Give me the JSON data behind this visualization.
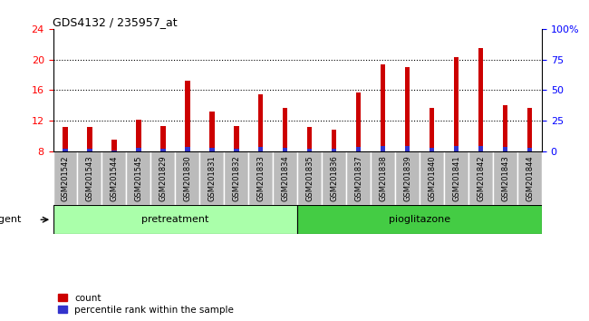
{
  "title": "GDS4132 / 235957_at",
  "samples": [
    "GSM201542",
    "GSM201543",
    "GSM201544",
    "GSM201545",
    "GSM201829",
    "GSM201830",
    "GSM201831",
    "GSM201832",
    "GSM201833",
    "GSM201834",
    "GSM201835",
    "GSM201836",
    "GSM201837",
    "GSM201838",
    "GSM201839",
    "GSM201840",
    "GSM201841",
    "GSM201842",
    "GSM201843",
    "GSM201844"
  ],
  "count_values": [
    11.2,
    11.2,
    9.5,
    12.1,
    11.3,
    17.2,
    13.2,
    11.3,
    15.4,
    13.7,
    11.2,
    10.8,
    15.7,
    19.3,
    19.0,
    13.7,
    20.3,
    21.5,
    14.0,
    13.7
  ],
  "percentile_raw": [
    8.3,
    8.3,
    8.1,
    8.4,
    8.3,
    8.6,
    8.5,
    8.3,
    8.6,
    8.5,
    8.3,
    8.3,
    8.6,
    8.7,
    8.7,
    8.5,
    8.7,
    8.7,
    8.6,
    8.5
  ],
  "group1_label": "pretreatment",
  "group2_label": "pioglitazone",
  "group1_count": 10,
  "group2_count": 10,
  "ylim_left": [
    8,
    24
  ],
  "ylim_right": [
    0,
    100
  ],
  "yticks_left": [
    8,
    12,
    16,
    20,
    24
  ],
  "yticks_right": [
    0,
    25,
    50,
    75,
    100
  ],
  "ytick_labels_right": [
    "0",
    "25",
    "50",
    "75",
    "100%"
  ],
  "bar_color_red": "#cc0000",
  "bar_color_blue": "#3333cc",
  "group_bg1": "#aaffaa",
  "group_bg2": "#44cc44",
  "xtick_bg": "#bbbbbb",
  "bar_width": 0.5,
  "agent_label": "agent",
  "legend_count": "count",
  "legend_pct": "percentile rank within the sample",
  "grid_lines": [
    12,
    16,
    20
  ],
  "red_ytick": "8"
}
